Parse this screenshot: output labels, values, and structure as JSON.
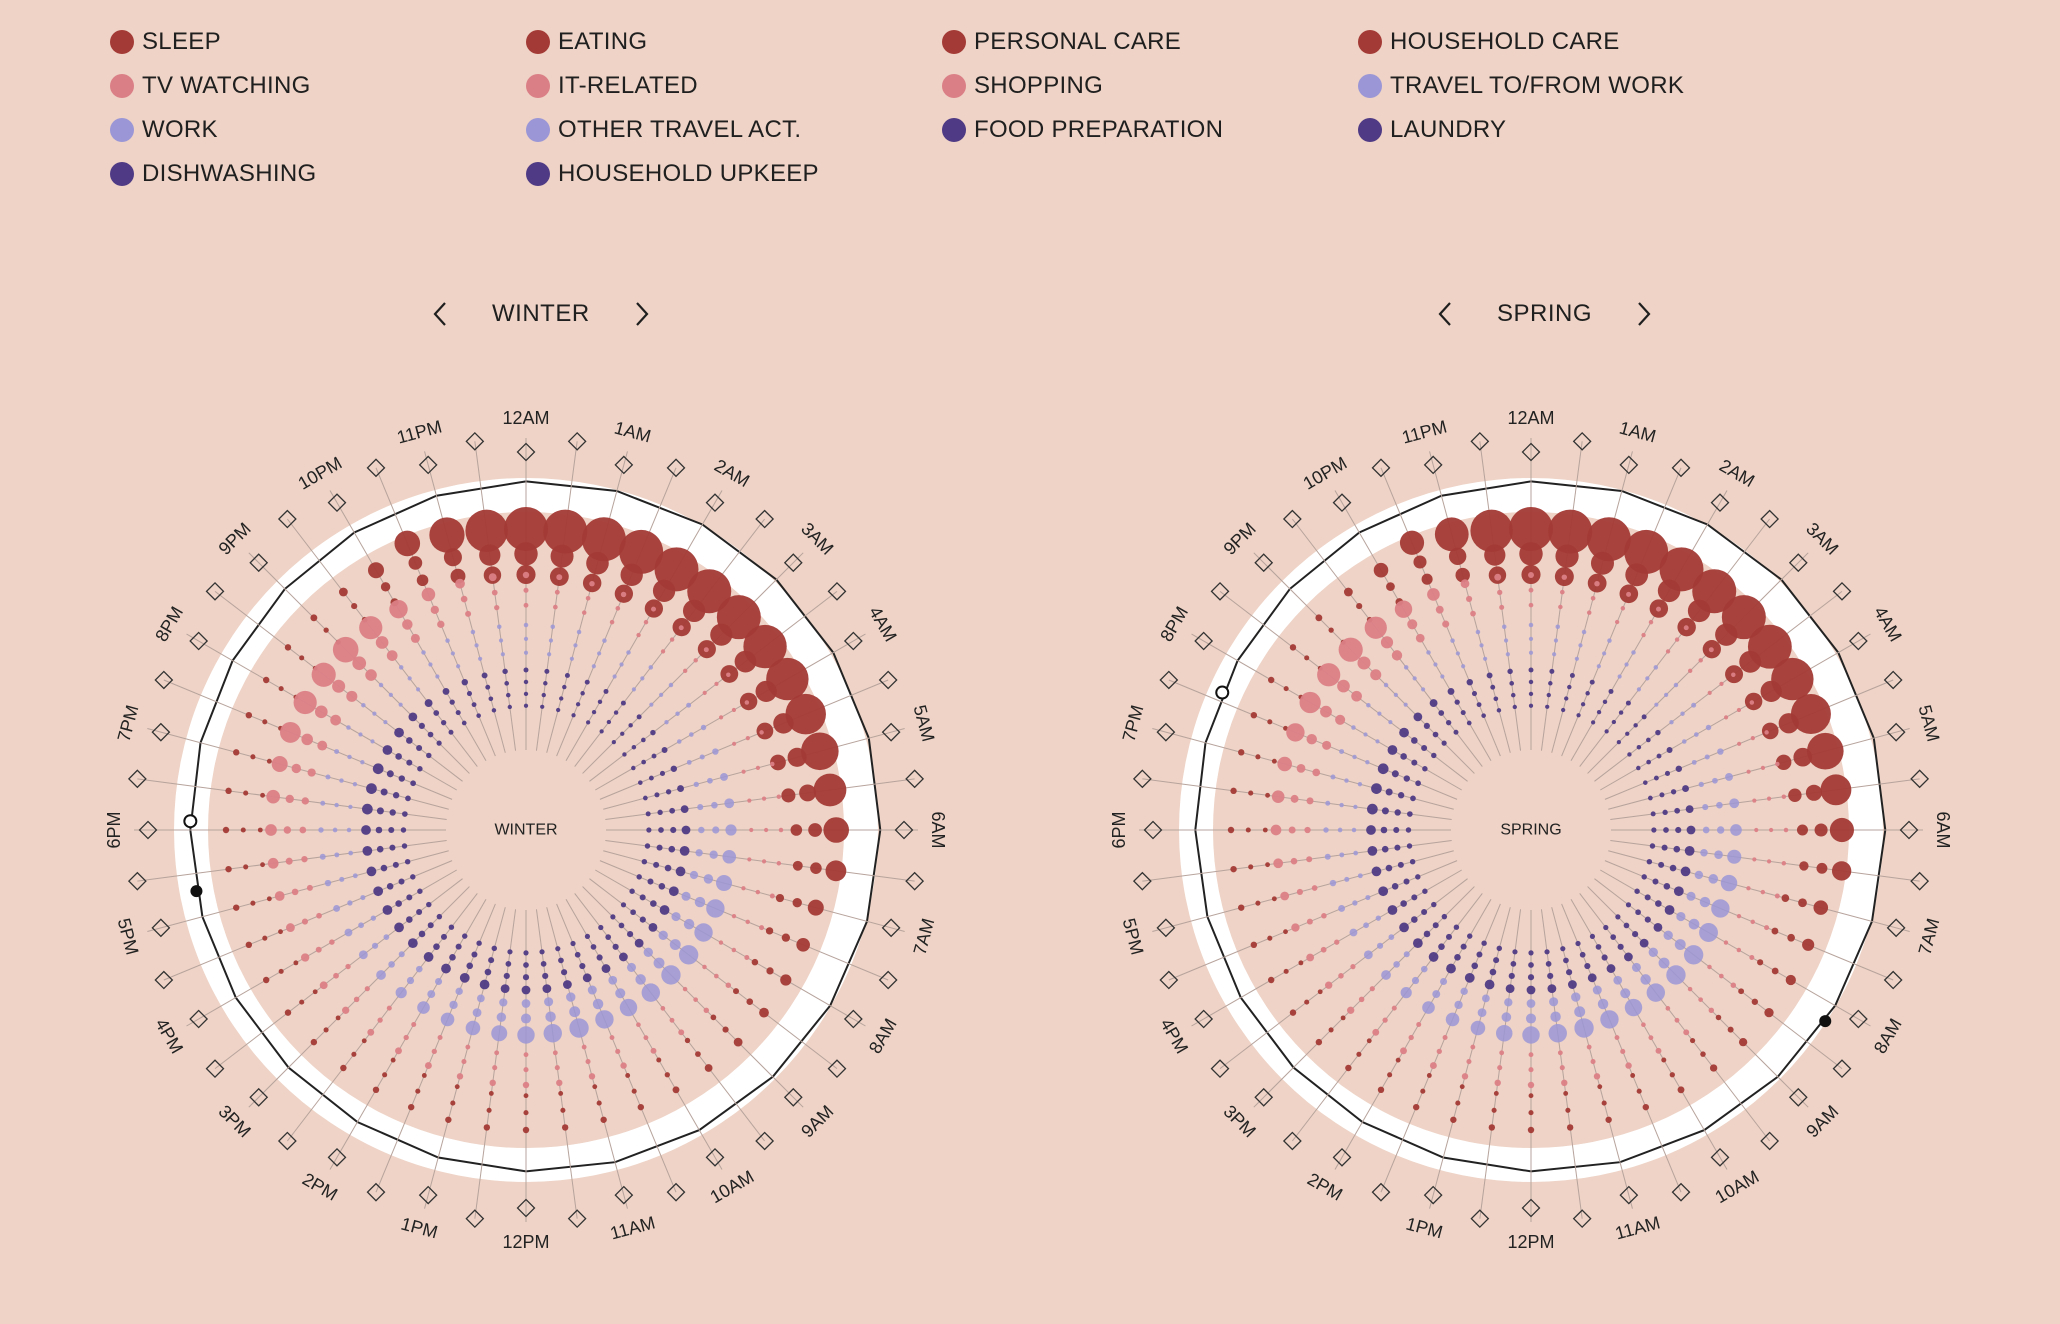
{
  "legend": [
    {
      "label": "SLEEP",
      "color": "#a33a35"
    },
    {
      "label": "EATING",
      "color": "#a33a35"
    },
    {
      "label": "PERSONAL CARE",
      "color": "#a33a35"
    },
    {
      "label": "HOUSEHOLD CARE",
      "color": "#a33a35"
    },
    {
      "label": "TV WATCHING",
      "color": "#db7f86"
    },
    {
      "label": "IT-RELATED",
      "color": "#db7f86"
    },
    {
      "label": "SHOPPING",
      "color": "#db7f86"
    },
    {
      "label": "TRAVEL TO/FROM WORK",
      "color": "#9b97d6"
    },
    {
      "label": "WORK",
      "color": "#9b97d6"
    },
    {
      "label": "OTHER TRAVEL ACT.",
      "color": "#9b97d6"
    },
    {
      "label": "FOOD PREPARATION",
      "color": "#4f3b85"
    },
    {
      "label": "LAUNDRY",
      "color": "#4f3b85"
    },
    {
      "label": "DISHWASHING",
      "color": "#4f3b85"
    },
    {
      "label": "HOUSEHOLD UPKEEP",
      "color": "#4f3b85"
    }
  ],
  "colors": {
    "background": "#eed3c6",
    "ring": "#ffffff",
    "red": "#a33a35",
    "pink": "#db7f86",
    "lavender": "#9b97d6",
    "purple": "#4f3b85"
  },
  "hour_labels": [
    "12AM",
    "1AM",
    "2AM",
    "3AM",
    "4AM",
    "5AM",
    "6AM",
    "7AM",
    "8AM",
    "9AM",
    "10AM",
    "11AM",
    "12PM",
    "1PM",
    "2PM",
    "3PM",
    "4PM",
    "5PM",
    "6PM",
    "7PM",
    "8PM",
    "9PM",
    "10PM",
    "11PM"
  ],
  "icons": {
    "prev": "chevron-left-icon",
    "next": "chevron-right-icon",
    "tick": "diamond-marker-icon"
  },
  "chart_data": [
    {
      "type": "radial-bubble",
      "season": "WINTER",
      "center_label": "WINTER",
      "intervals_per_hour": 2,
      "categories": [
        "SLEEP",
        "EATING",
        "PERSONAL CARE",
        "HOUSEHOLD CARE",
        "TV WATCHING",
        "IT-RELATED",
        "SHOPPING",
        "TRAVEL TO/FROM WORK",
        "WORK",
        "OTHER TRAVEL ACT.",
        "FOOD PREPARATION",
        "LAUNDRY",
        "DISHWASHING",
        "HOUSEHOLD UPKEEP"
      ],
      "sleep_share": [
        0.9,
        0.88,
        0.86,
        0.85,
        0.85,
        0.85,
        0.84,
        0.82,
        0.8,
        0.76,
        0.7,
        0.6,
        0.45,
        0.35,
        0.25,
        0.2,
        0.15,
        0.12,
        0.1,
        0.08,
        0.06,
        0.05,
        0.05,
        0.05,
        0.05,
        0.05,
        0.05,
        0.05,
        0.05,
        0.05,
        0.05,
        0.05,
        0.05,
        0.05,
        0.05,
        0.05,
        0.05,
        0.05,
        0.05,
        0.05,
        0.05,
        0.05,
        0.06,
        0.1,
        0.25,
        0.45,
        0.65,
        0.8
      ],
      "tv_share": [
        0.05,
        0.04,
        0.03,
        0.03,
        0.02,
        0.02,
        0.02,
        0.01,
        0.01,
        0.01,
        0.01,
        0.01,
        0.01,
        0.01,
        0.02,
        0.02,
        0.02,
        0.03,
        0.03,
        0.04,
        0.04,
        0.05,
        0.05,
        0.05,
        0.05,
        0.05,
        0.05,
        0.06,
        0.06,
        0.06,
        0.07,
        0.08,
        0.09,
        0.1,
        0.12,
        0.14,
        0.16,
        0.2,
        0.25,
        0.35,
        0.4,
        0.42,
        0.45,
        0.4,
        0.3,
        0.2,
        0.12,
        0.08
      ],
      "work_share": [
        0.01,
        0.01,
        0.01,
        0.01,
        0.01,
        0.01,
        0.01,
        0.02,
        0.03,
        0.05,
        0.08,
        0.12,
        0.15,
        0.2,
        0.25,
        0.3,
        0.3,
        0.32,
        0.32,
        0.3,
        0.28,
        0.3,
        0.32,
        0.3,
        0.28,
        0.25,
        0.22,
        0.2,
        0.18,
        0.15,
        0.12,
        0.1,
        0.08,
        0.06,
        0.05,
        0.04,
        0.03,
        0.02,
        0.02,
        0.02,
        0.01,
        0.01,
        0.01,
        0.01,
        0.01,
        0.01,
        0.01,
        0.01
      ],
      "house_share": [
        0.02,
        0.02,
        0.02,
        0.02,
        0.02,
        0.02,
        0.02,
        0.03,
        0.04,
        0.05,
        0.06,
        0.08,
        0.1,
        0.12,
        0.12,
        0.12,
        0.12,
        0.1,
        0.1,
        0.1,
        0.1,
        0.1,
        0.1,
        0.1,
        0.1,
        0.1,
        0.12,
        0.12,
        0.12,
        0.12,
        0.12,
        0.12,
        0.12,
        0.12,
        0.12,
        0.12,
        0.12,
        0.14,
        0.14,
        0.14,
        0.12,
        0.12,
        0.1,
        0.08,
        0.06,
        0.05,
        0.04,
        0.03
      ],
      "indicator": {
        "open_hour": 18.1,
        "filled_hour": 17.3
      }
    },
    {
      "type": "radial-bubble",
      "season": "SPRING",
      "center_label": "SPRING",
      "intervals_per_hour": 2,
      "categories": [
        "SLEEP",
        "EATING",
        "PERSONAL CARE",
        "HOUSEHOLD CARE",
        "TV WATCHING",
        "IT-RELATED",
        "SHOPPING",
        "TRAVEL TO/FROM WORK",
        "WORK",
        "OTHER TRAVEL ACT.",
        "FOOD PREPARATION",
        "LAUNDRY",
        "DISHWASHING",
        "HOUSEHOLD UPKEEP"
      ],
      "sleep_share": [
        0.9,
        0.89,
        0.88,
        0.87,
        0.86,
        0.86,
        0.85,
        0.83,
        0.8,
        0.75,
        0.68,
        0.56,
        0.42,
        0.32,
        0.22,
        0.17,
        0.13,
        0.11,
        0.09,
        0.07,
        0.06,
        0.05,
        0.05,
        0.05,
        0.05,
        0.05,
        0.05,
        0.05,
        0.05,
        0.05,
        0.05,
        0.05,
        0.05,
        0.05,
        0.05,
        0.05,
        0.05,
        0.05,
        0.05,
        0.05,
        0.05,
        0.05,
        0.06,
        0.1,
        0.22,
        0.42,
        0.62,
        0.8
      ],
      "tv_share": [
        0.04,
        0.03,
        0.03,
        0.02,
        0.02,
        0.02,
        0.02,
        0.01,
        0.01,
        0.01,
        0.01,
        0.01,
        0.01,
        0.01,
        0.02,
        0.02,
        0.02,
        0.03,
        0.03,
        0.04,
        0.04,
        0.05,
        0.05,
        0.05,
        0.05,
        0.05,
        0.05,
        0.06,
        0.06,
        0.06,
        0.07,
        0.07,
        0.08,
        0.09,
        0.1,
        0.12,
        0.14,
        0.18,
        0.22,
        0.3,
        0.36,
        0.4,
        0.42,
        0.38,
        0.28,
        0.18,
        0.1,
        0.06
      ],
      "work_share": [
        0.01,
        0.01,
        0.01,
        0.01,
        0.01,
        0.01,
        0.01,
        0.02,
        0.03,
        0.05,
        0.08,
        0.12,
        0.16,
        0.21,
        0.26,
        0.3,
        0.31,
        0.32,
        0.32,
        0.3,
        0.28,
        0.3,
        0.32,
        0.3,
        0.28,
        0.26,
        0.22,
        0.2,
        0.18,
        0.15,
        0.12,
        0.1,
        0.08,
        0.06,
        0.05,
        0.04,
        0.03,
        0.02,
        0.02,
        0.02,
        0.01,
        0.01,
        0.01,
        0.01,
        0.01,
        0.01,
        0.01,
        0.01
      ],
      "house_share": [
        0.02,
        0.02,
        0.02,
        0.02,
        0.02,
        0.02,
        0.02,
        0.03,
        0.04,
        0.05,
        0.06,
        0.08,
        0.1,
        0.12,
        0.12,
        0.12,
        0.12,
        0.1,
        0.1,
        0.1,
        0.1,
        0.1,
        0.1,
        0.1,
        0.1,
        0.1,
        0.12,
        0.12,
        0.12,
        0.12,
        0.12,
        0.12,
        0.12,
        0.12,
        0.12,
        0.12,
        0.12,
        0.14,
        0.14,
        0.14,
        0.12,
        0.12,
        0.1,
        0.08,
        0.06,
        0.05,
        0.04,
        0.03
      ],
      "indicator": {
        "open_hour": 19.6,
        "filled_hour": 8.2
      }
    }
  ]
}
